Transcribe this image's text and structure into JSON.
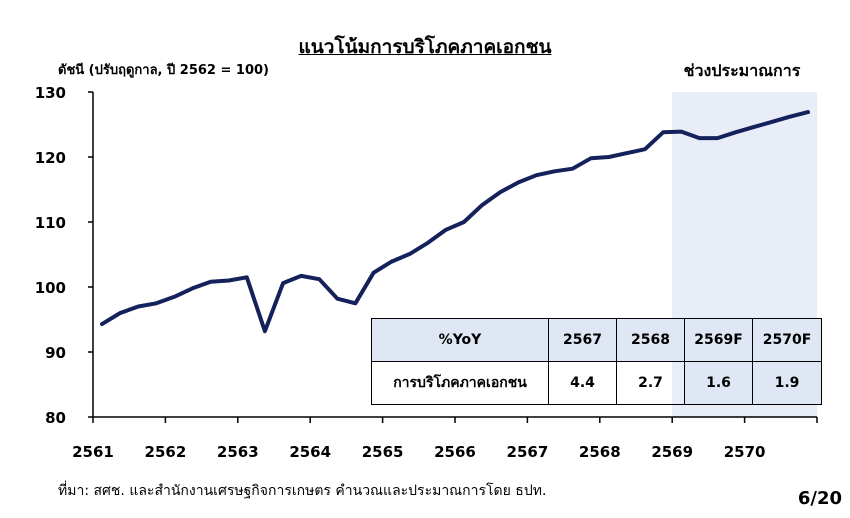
{
  "header_cut_text": "",
  "title": "แนวโน้มการบริโภคภาคเอกชน",
  "y_axis_label": "ดัชนี (ปรับฤดูกาล, ปี 2562 = 100)",
  "forecast_label": "ช่วงประมาณการ",
  "source": "ที่มา: สศช. และสำนักงานเศรษฐกิจการเกษตร คำนวณและประมาณการโดย ธปท.",
  "page_number": "6/20",
  "colors": {
    "line": "#15215a",
    "forecast_shade": "#e8edf8",
    "table_header": "#dfe7f5"
  },
  "table": {
    "header": [
      "%YoY",
      "2567",
      "2568",
      "2569F",
      "2570F"
    ],
    "row": [
      "การบริโภคภาคเอกชน",
      "4.4",
      "2.7",
      "1.6",
      "1.9"
    ]
  },
  "chart_data": {
    "type": "line",
    "title": "แนวโน้มการบริโภคภาคเอกชน",
    "ylabel": "ดัชนี (ปรับฤดูกาล, ปี 2562 = 100)",
    "ylim": [
      80,
      130
    ],
    "yticks": [
      80,
      90,
      100,
      110,
      120,
      130
    ],
    "xticks": [
      "2561",
      "2562",
      "2563",
      "2564",
      "2565",
      "2566",
      "2567",
      "2568",
      "2569",
      "2570"
    ],
    "xlim": [
      2561,
      2571
    ],
    "forecast_region": [
      2569,
      2571
    ],
    "grid": false,
    "series": [
      {
        "x": [
          2561.125,
          2561.375,
          2561.625,
          2561.875,
          2562.125,
          2562.375,
          2562.625,
          2562.875,
          2563.125,
          2563.375,
          2563.625,
          2563.875,
          2564.125,
          2564.375,
          2564.625,
          2564.875,
          2565.125,
          2565.375,
          2565.625,
          2565.875,
          2566.125,
          2566.375,
          2566.625,
          2566.875,
          2567.125,
          2567.375,
          2567.625,
          2567.875,
          2568.125,
          2568.375,
          2568.625,
          2568.875,
          2569.125,
          2569.375,
          2569.625,
          2569.875,
          2570.125,
          2570.375,
          2570.625,
          2570.875
        ],
        "values": [
          94.3,
          96.0,
          97.0,
          97.5,
          98.5,
          99.8,
          100.8,
          101.0,
          101.5,
          93.2,
          100.6,
          101.7,
          101.2,
          98.2,
          97.5,
          102.2,
          103.9,
          105.1,
          106.8,
          108.8,
          110.0,
          112.6,
          114.6,
          116.1,
          117.2,
          117.8,
          118.2,
          119.8,
          120.0,
          120.6,
          121.2,
          123.8,
          123.9,
          122.9,
          122.9,
          123.8,
          124.6,
          125.4,
          126.2,
          126.9
        ]
      }
    ]
  }
}
